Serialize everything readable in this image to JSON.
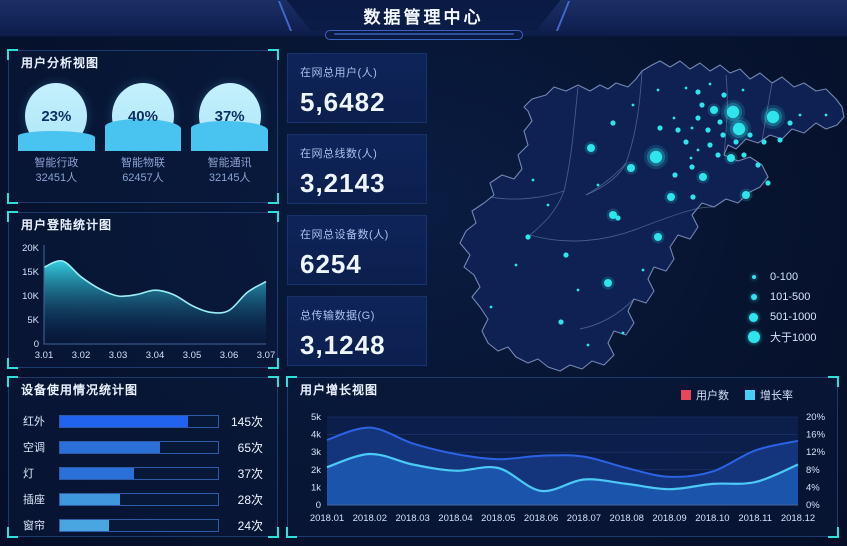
{
  "header": {
    "title": "数据管理中心"
  },
  "colors": {
    "accent_bracket": "#2fe0d8",
    "dot_cyan": "#2de5ea",
    "gauge_water": "#49c3f0",
    "gauge_top": "#b9edfb",
    "login_line": "#9beef5",
    "login_fill": "#37d8e9",
    "users_series_red_swatch": "#e8475a",
    "growth_series_cyan": "#49ccf5",
    "users_area_blue": "#2c63e4"
  },
  "user_analysis": {
    "title": "用户分析视图",
    "gauges": [
      {
        "pct": 23,
        "pct_label": "23%",
        "label": "智能行政",
        "count": "32451人"
      },
      {
        "pct": 40,
        "pct_label": "40%",
        "label": "智能物联",
        "count": "62457人"
      },
      {
        "pct": 37,
        "pct_label": "37%",
        "label": "智能通讯",
        "count": "32145人"
      }
    ]
  },
  "login_stats": {
    "title": "用户登陆统计图"
  },
  "device_usage": {
    "title": "设备使用情况统计图"
  },
  "stats": [
    {
      "label": "在网总用户(人)",
      "value": "5,6482"
    },
    {
      "label": "在网总线数(人)",
      "value": "3,2143"
    },
    {
      "label": "在网总设备数(人)",
      "value": "6254"
    },
    {
      "label": "总传输数据(G)",
      "value": "3,1248"
    }
  ],
  "map": {
    "legend": [
      "0-100",
      "101-500",
      "501-1000",
      "大于1000"
    ],
    "dots": [
      [
        305,
        67,
        3
      ],
      [
        311,
        84,
        3
      ],
      [
        345,
        72,
        3
      ],
      [
        228,
        112,
        3
      ],
      [
        163,
        103,
        2
      ],
      [
        203,
        123,
        2
      ],
      [
        275,
        132,
        2
      ],
      [
        243,
        152,
        2
      ],
      [
        185,
        170,
        2
      ],
      [
        180,
        238,
        2
      ],
      [
        230,
        192,
        2
      ],
      [
        303,
        113,
        2
      ],
      [
        286,
        65,
        2
      ],
      [
        318,
        150,
        2
      ],
      [
        185,
        78,
        1
      ],
      [
        232,
        83,
        1
      ],
      [
        247,
        130,
        1
      ],
      [
        265,
        152,
        1
      ],
      [
        190,
        173,
        1
      ],
      [
        138,
        210,
        1
      ],
      [
        133,
        277,
        1
      ],
      [
        100,
        192,
        1
      ],
      [
        270,
        47,
        1
      ],
      [
        296,
        50,
        1
      ],
      [
        274,
        60,
        1
      ],
      [
        292,
        77,
        1
      ],
      [
        270,
        73,
        1
      ],
      [
        280,
        85,
        1
      ],
      [
        295,
        90,
        1
      ],
      [
        308,
        97,
        1
      ],
      [
        322,
        90,
        1
      ],
      [
        336,
        97,
        1
      ],
      [
        282,
        100,
        1
      ],
      [
        258,
        97,
        1
      ],
      [
        290,
        110,
        1
      ],
      [
        316,
        110,
        1
      ],
      [
        250,
        85,
        1
      ],
      [
        264,
        122,
        1
      ],
      [
        330,
        120,
        1
      ],
      [
        352,
        95,
        1
      ],
      [
        362,
        78,
        1
      ],
      [
        340,
        138,
        1
      ],
      [
        258,
        43,
        0
      ],
      [
        282,
        39,
        0
      ],
      [
        315,
        45,
        0
      ],
      [
        264,
        83,
        0
      ],
      [
        270,
        105,
        0
      ],
      [
        263,
        113,
        0
      ],
      [
        246,
        73,
        0
      ],
      [
        63,
        262,
        0
      ],
      [
        88,
        220,
        0
      ],
      [
        150,
        245,
        0
      ],
      [
        120,
        160,
        0
      ],
      [
        205,
        60,
        0
      ],
      [
        230,
        45,
        0
      ],
      [
        372,
        70,
        0
      ],
      [
        398,
        70,
        0
      ],
      [
        105,
        135,
        0
      ],
      [
        170,
        140,
        0
      ],
      [
        215,
        225,
        0
      ],
      [
        160,
        300,
        0
      ],
      [
        195,
        288,
        0
      ]
    ]
  },
  "growth": {
    "title": "用户增长视图"
  },
  "chart_data": [
    {
      "type": "area",
      "title": "用户登陆统计图",
      "xlabel": "",
      "ylabel": "",
      "xticks": [
        "3.01",
        "3.02",
        "3.03",
        "3.04",
        "3.05",
        "3.06",
        "3.07"
      ],
      "x_dense": [
        3.01,
        3.015,
        3.02,
        3.025,
        3.03,
        3.035,
        3.04,
        3.045,
        3.05,
        3.055,
        3.06,
        3.065,
        3.07
      ],
      "values_k": [
        16,
        17.3,
        14,
        11.5,
        10,
        10.3,
        11.2,
        10.3,
        8,
        6.6,
        7,
        10.8,
        13
      ],
      "ylim": [
        0,
        20
      ],
      "yticks": [
        "0",
        "5K",
        "10K",
        "15K",
        "20K"
      ],
      "grid": false,
      "legend": null
    },
    {
      "type": "bar",
      "orientation": "horizontal",
      "title": "设备使用情况统计图",
      "categories": [
        "红外",
        "空调",
        "灯",
        "插座",
        "窗帘"
      ],
      "values": [
        145,
        65,
        37,
        28,
        24
      ],
      "value_labels": [
        "145次",
        "65次",
        "37次",
        "28次",
        "24次"
      ],
      "fill_pct": [
        81,
        63,
        47,
        38,
        31
      ],
      "bar_colors": [
        "#2163ee",
        "#2b6fd8",
        "#2b6fd8",
        "#3f97dc",
        "#4aa6e0"
      ],
      "unit": "次"
    },
    {
      "type": "area",
      "title": "用户增长视图",
      "categories": [
        "2018.01",
        "2018.02",
        "2018.03",
        "2018.04",
        "2018.05",
        "2018.06",
        "2018.07",
        "2018.08",
        "2018.09",
        "2018.10",
        "2018.11",
        "2018.12"
      ],
      "series": [
        {
          "name": "用户数",
          "axis": "left",
          "swatch": "#e8475a",
          "line": "#2c63e4",
          "fill": "#16367f",
          "values_k": [
            3.7,
            4.4,
            3.5,
            2.9,
            2.6,
            2.8,
            2.75,
            2.1,
            1.6,
            1.9,
            3.1,
            3.65
          ]
        },
        {
          "name": "增长率",
          "axis": "right",
          "swatch": "#49ccf5",
          "line": "#4ccaf7",
          "fill": "rgba(30,95,185,0.78)",
          "values_pct": [
            8.6,
            11.6,
            9.2,
            7.8,
            8.4,
            3.2,
            5.8,
            4.8,
            3.6,
            4.8,
            5.2,
            9.2
          ]
        }
      ],
      "ylim_left": [
        0,
        5
      ],
      "ylim_right": [
        0,
        20
      ],
      "yticks_left": [
        "0",
        "1k",
        "2k",
        "3k",
        "4k",
        "5k"
      ],
      "yticks_right": [
        "0%",
        "4%",
        "8%",
        "12%",
        "16%",
        "20%"
      ],
      "grid": true,
      "legend_position": "top-right"
    }
  ]
}
